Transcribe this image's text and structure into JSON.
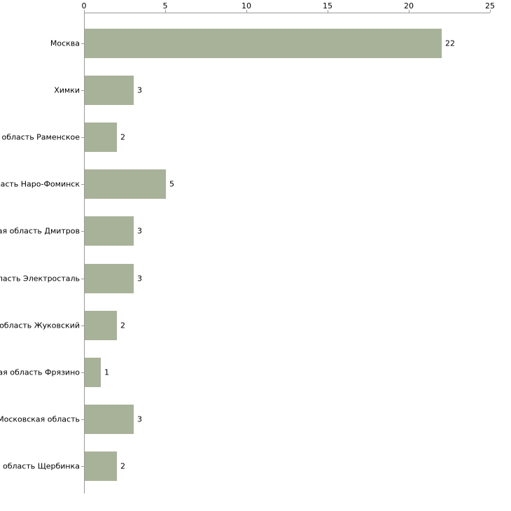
{
  "chart_data": {
    "type": "bar",
    "orientation": "horizontal",
    "title": "",
    "xlabel": "",
    "ylabel": "",
    "categories": [
      "Москва",
      "Химки",
      "я область Раменское",
      "бласть Наро-Фоминск",
      "кая область Дмитров",
      "бласть Электросталь",
      "я область Жуковский",
      "кая область Фрязино",
      "Московская область",
      "я область Щербинка"
    ],
    "values": [
      22,
      3,
      2,
      5,
      3,
      3,
      2,
      1,
      3,
      2
    ],
    "xticks": [
      0,
      5,
      10,
      15,
      20,
      25
    ],
    "xlim": [
      0,
      25
    ],
    "grid": false,
    "legend": false,
    "value_labels_shown": true,
    "colors": {
      "bar": "#a8b298",
      "axis": "#9a9a9a",
      "text": "#000000",
      "background": "#ffffff"
    }
  }
}
